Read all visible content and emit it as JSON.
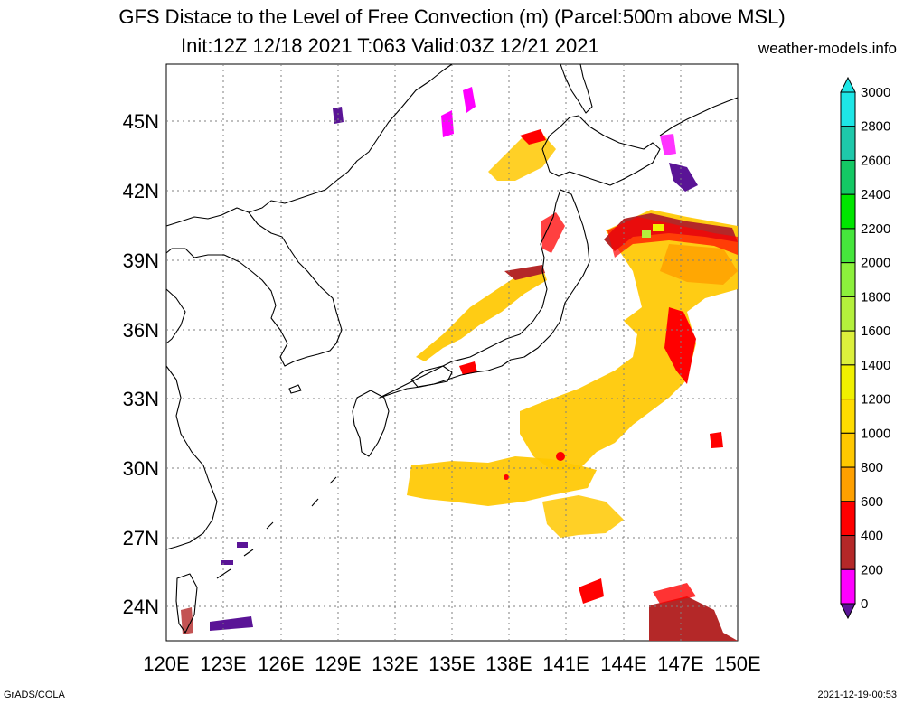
{
  "header": {
    "title_line1": "GFS Distace to the Level of Free Convection (m) (Parcel:500m above MSL)",
    "title_line2": "Init:12Z 12/18 2021 T:063 Valid:03Z 12/21 2021",
    "site": "weather-models.info"
  },
  "footer": {
    "left": "GrADS/COLA",
    "right": "2021-12-19-00:53"
  },
  "map": {
    "lon_labels": [
      "120E",
      "123E",
      "126E",
      "129E",
      "132E",
      "135E",
      "138E",
      "141E",
      "144E",
      "147E",
      "150E"
    ],
    "lat_labels": [
      "45N",
      "42N",
      "39N",
      "36N",
      "33N",
      "30N",
      "27N",
      "24N"
    ],
    "grid": "dotted"
  },
  "colorbar": {
    "labels": [
      "3000",
      "2800",
      "2600",
      "2400",
      "2200",
      "2000",
      "1800",
      "1600",
      "1400",
      "1200",
      "1000",
      "800",
      "600",
      "400",
      "200",
      "0"
    ],
    "colors": [
      "#1ee6e6",
      "#1ec8aa",
      "#14c864",
      "#00e600",
      "#46e63c",
      "#8cf03c",
      "#b4f03c",
      "#dcf03c",
      "#f0f000",
      "#ffdc00",
      "#ffc800",
      "#ffa000",
      "#ff0000",
      "#b42828",
      "#ff00ff",
      "#5a1496"
    ]
  }
}
